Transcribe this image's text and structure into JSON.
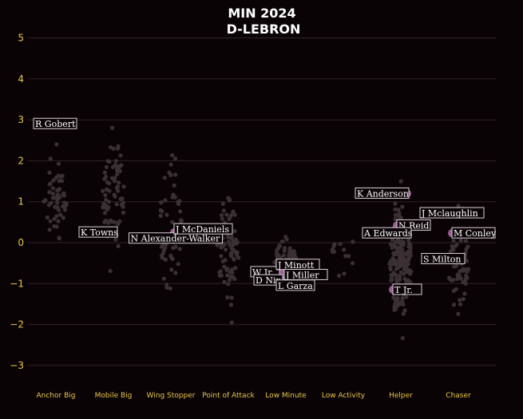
{
  "chart_data": {
    "type": "scatter",
    "title": "MIN 2024",
    "subtitle": "D-LEBRON",
    "xlabel": "",
    "ylabel": "",
    "ylim": [
      -3.4,
      5.3
    ],
    "yticks": [
      5,
      4,
      3,
      2,
      1,
      0,
      -1,
      -2,
      -3
    ],
    "categories": [
      "Anchor Big",
      "Mobile Big",
      "Wing Stopper",
      "Point of Attack",
      "Low Minute",
      "Low Activity",
      "Helper",
      "Chaser"
    ],
    "background_counts": [
      55,
      70,
      55,
      90,
      85,
      14,
      190,
      75
    ],
    "background_ranges": [
      [
        -0.4,
        2.4
      ],
      [
        -0.8,
        3.0
      ],
      [
        -2.0,
        2.8
      ],
      [
        -2.0,
        1.8
      ],
      [
        -1.2,
        0.3
      ],
      [
        -1.2,
        0.7
      ],
      [
        -2.4,
        1.5
      ],
      [
        -1.9,
        1.1
      ]
    ],
    "grid": true,
    "highlight_color": "#a05a98",
    "highlights": [
      {
        "name": "R Gobert",
        "category": "Anchor Big",
        "y": 2.9
      },
      {
        "name": "K Towns",
        "category": "Mobile Big",
        "y": 0.25
      },
      {
        "name": "N Alexander-Walker",
        "category": "Wing Stopper",
        "y": 0.2
      },
      {
        "name": "J McDaniels",
        "category": "Wing Stopper",
        "y": 0.25
      },
      {
        "name": "W Jr.",
        "category": "Low Minute",
        "y": -0.7
      },
      {
        "name": "J Minott",
        "category": "Low Minute",
        "y": -0.6
      },
      {
        "name": "J Miller",
        "category": "Low Minute",
        "y": -0.75
      },
      {
        "name": "D Nix",
        "category": "Low Minute",
        "y": -0.9
      },
      {
        "name": "L Garza",
        "category": "Low Minute",
        "y": -1.05
      },
      {
        "name": "K Anderson",
        "category": "Helper",
        "y": 1.2
      },
      {
        "name": "N Reid",
        "category": "Helper",
        "y": 0.42
      },
      {
        "name": "A Edwards",
        "category": "Helper",
        "y": 0.23
      },
      {
        "name": "T Jr.",
        "category": "Helper",
        "y": -1.15
      },
      {
        "name": "J Mclaughlin",
        "category": "Chaser",
        "y": 0.72
      },
      {
        "name": "M Conley",
        "category": "Chaser",
        "y": 0.23
      },
      {
        "name": "S Milton",
        "category": "Chaser",
        "y": -0.4
      }
    ]
  }
}
